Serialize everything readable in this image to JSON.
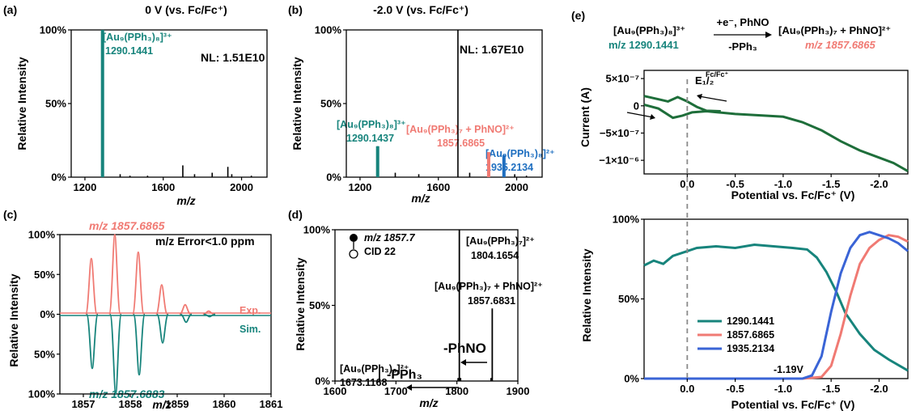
{
  "colors": {
    "teal": "#17847c",
    "salmon": "#f07a73",
    "blue": "#1f6fc0",
    "darkblue": "#3a64d6",
    "black": "#000000",
    "cvgreen": "#1e6e3a",
    "dash": "#8a8a8a"
  },
  "panel_labels": [
    "(a)",
    "(b)",
    "(c)",
    "(d)",
    "(e)"
  ],
  "chart_data": [
    {
      "id": "a",
      "type": "bar",
      "title": "0 V (vs. Fc/Fc⁺)",
      "xlabel": "m/z",
      "ylabel": "Relative Intensity",
      "xlim": [
        1130,
        2130
      ],
      "ylim": [
        0,
        100
      ],
      "xticks": [
        "1200",
        "1600",
        "2000"
      ],
      "yticks": [
        "0%",
        "50%",
        "100%"
      ],
      "nl": "NL: 1.51E10",
      "peak_label": {
        "species": "[Au₉(PPh₃)₈]³⁺",
        "mz": "1290.1441"
      },
      "peaks": [
        {
          "x": 1290,
          "y": 100,
          "c": "teal"
        },
        {
          "x": 1287,
          "y": 100,
          "c": "teal"
        },
        {
          "x": 1293,
          "y": 100,
          "c": "teal"
        },
        {
          "x": 1380,
          "y": 2,
          "c": "black"
        },
        {
          "x": 1430,
          "y": 1,
          "c": "black"
        },
        {
          "x": 1520,
          "y": 1,
          "c": "black"
        },
        {
          "x": 1700,
          "y": 8,
          "c": "black"
        },
        {
          "x": 1760,
          "y": 2,
          "c": "black"
        },
        {
          "x": 1850,
          "y": 3,
          "c": "black"
        },
        {
          "x": 1930,
          "y": 7,
          "c": "black"
        },
        {
          "x": 1950,
          "y": 2,
          "c": "black"
        },
        {
          "x": 2050,
          "y": 1,
          "c": "black"
        }
      ]
    },
    {
      "id": "b",
      "type": "bar",
      "title": "-2.0 V (vs. Fc/Fc⁺)",
      "xlabel": "m/z",
      "ylabel": "Relative Intensity",
      "xlim": [
        1130,
        2130
      ],
      "ylim": [
        0,
        100
      ],
      "xticks": [
        "1200",
        "1600",
        "2000"
      ],
      "yticks": [
        "0%",
        "50%",
        "100%"
      ],
      "nl": "NL: 1.67E10",
      "labels": [
        {
          "species": "[Au₉(PPh₃)₈]³⁺",
          "mz": "1290.1437",
          "c": "teal"
        },
        {
          "species": "[Au₉(PPh₃)₇ + PhNO]²⁺",
          "mz": "1857.6865",
          "c": "salmon"
        },
        {
          "species": "[Au₉(PPh₃)₈]²⁺",
          "mz": "1935.2134",
          "c": "blue"
        }
      ],
      "peaks": [
        {
          "x": 1290,
          "y": 21,
          "c": "teal"
        },
        {
          "x": 1287,
          "y": 21,
          "c": "teal"
        },
        {
          "x": 1293,
          "y": 21,
          "c": "teal"
        },
        {
          "x": 1380,
          "y": 3,
          "c": "black"
        },
        {
          "x": 1500,
          "y": 2,
          "c": "black"
        },
        {
          "x": 1700,
          "y": 100,
          "c": "black"
        },
        {
          "x": 1760,
          "y": 3,
          "c": "black"
        },
        {
          "x": 1857,
          "y": 17,
          "c": "salmon"
        },
        {
          "x": 1854,
          "y": 17,
          "c": "salmon"
        },
        {
          "x": 1860,
          "y": 17,
          "c": "salmon"
        },
        {
          "x": 1935,
          "y": 15,
          "c": "blue"
        },
        {
          "x": 1932,
          "y": 15,
          "c": "blue"
        },
        {
          "x": 1938,
          "y": 15,
          "c": "blue"
        },
        {
          "x": 1990,
          "y": 2,
          "c": "black"
        },
        {
          "x": 2050,
          "y": 1,
          "c": "black"
        }
      ]
    },
    {
      "id": "c",
      "type": "bar",
      "xlabel": "m/z",
      "ylabel": "Relative Intensity",
      "xlim": [
        1856.5,
        1861
      ],
      "ylim": [
        -100,
        100
      ],
      "xticks": [
        "1857",
        "1858",
        "1859",
        "1860",
        "1861"
      ],
      "yticks": [
        "100%",
        "50%",
        "0%",
        "50%",
        "100%"
      ],
      "top_label": "m/z 1857.6865",
      "bottom_label": "m/z 1857.6883",
      "error_label": "m/z Error<1.0 ppm",
      "series": [
        {
          "name": "Exp.",
          "c": "salmon",
          "peaks": [
            [
              1857.17,
              70
            ],
            [
              1857.67,
              100
            ],
            [
              1858.17,
              78
            ],
            [
              1858.67,
              37
            ],
            [
              1859.17,
              12
            ],
            [
              1859.67,
              4
            ]
          ]
        },
        {
          "name": "Sim.",
          "c": "teal",
          "peaks": [
            [
              1857.19,
              -68
            ],
            [
              1857.69,
              -100
            ],
            [
              1858.19,
              -76
            ],
            [
              1858.69,
              -36
            ],
            [
              1859.19,
              -10
            ],
            [
              1859.69,
              -3
            ]
          ]
        }
      ]
    },
    {
      "id": "d",
      "type": "bar",
      "xlabel": "m/z",
      "ylabel": "Relative Intensity",
      "xlim": [
        1600,
        1900
      ],
      "ylim": [
        0,
        100
      ],
      "xticks": [
        "1600",
        "1700",
        "1800",
        "1900"
      ],
      "yticks": [
        "0%",
        "50%",
        "100%"
      ],
      "legend": {
        "precursor": "m/z 1857.7",
        "cid": "CID 22"
      },
      "labels": [
        {
          "species": "[Au₉(PPh₃)₇]²⁺",
          "mz": "1804.1654"
        },
        {
          "species": "[Au₉(PPh₃)₇ + PhNO]²⁺",
          "mz": "1857.6831"
        },
        {
          "species": "[Au₉(PPh₃)₆]²⁺",
          "mz": "1673.1168"
        }
      ],
      "losses": [
        "-PhNO",
        "-PPh₃"
      ],
      "peaks": [
        [
          1673,
          6
        ],
        [
          1802,
          2
        ],
        [
          1804,
          100
        ],
        [
          1806,
          2
        ],
        [
          1856,
          2
        ],
        [
          1858,
          48
        ]
      ]
    },
    {
      "id": "e-top",
      "type": "line",
      "xlabel": "Potential vs. Fc/Fc⁺ (V)",
      "ylabel": "Current (A)",
      "xlim": [
        0.45,
        -2.3
      ],
      "ylim": [
        -1.25e-06,
        6.5e-07
      ],
      "xticks": [
        "0.0",
        "-0.5",
        "-1.0",
        "-1.5",
        "-2.0"
      ],
      "yticks": [
        "5×10⁻⁷",
        "0",
        "−5×10⁻⁷",
        "−1×10⁻⁶"
      ],
      "scheme": {
        "reactant": "[Au₉(PPh₃)₈]³⁺",
        "reactant_mz": "m/z 1290.1441",
        "reagent_top": "+e⁻, PhNO",
        "reagent_bottom": "-PPh₃",
        "product": "[Au₉(PPh₃)₇ + PhNO]²⁺",
        "product_mz": "m/z 1857.6865"
      },
      "e_half": "E₁/₂",
      "e_half_sup": "Fc/Fc⁺",
      "dashed_x": 0.0,
      "forward": [
        [
          0.45,
          2e-08
        ],
        [
          0.3,
          -5e-08
        ],
        [
          0.15,
          -2.2e-07
        ],
        [
          0.05,
          -1.8e-07
        ],
        [
          -0.05,
          -1.2e-07
        ],
        [
          -0.2,
          -1e-07
        ],
        [
          -0.5,
          -1.5e-07
        ],
        [
          -0.8,
          -1.8e-07
        ],
        [
          -1.0,
          -2e-07
        ],
        [
          -1.2,
          -3e-07
        ],
        [
          -1.4,
          -4.5e-07
        ],
        [
          -1.6,
          -6.5e-07
        ],
        [
          -1.8,
          -8.2e-07
        ],
        [
          -2.0,
          -9.5e-07
        ],
        [
          -2.15,
          -1.05e-06
        ],
        [
          -2.3,
          -1.2e-06
        ]
      ],
      "reverse": [
        [
          0.45,
          1.8e-07
        ],
        [
          0.3,
          1.2e-07
        ],
        [
          0.2,
          8e-08
        ],
        [
          0.1,
          1.6e-07
        ],
        [
          0.0,
          8e-08
        ],
        [
          -0.1,
          -2e-08
        ],
        [
          -0.2,
          -9e-08
        ],
        [
          -0.35,
          -1e-07
        ]
      ]
    },
    {
      "id": "e-bottom",
      "type": "line",
      "xlabel": "Potential vs. Fc/Fc⁺ (V)",
      "ylabel": "Relative Intensity",
      "xlim": [
        0.45,
        -2.3
      ],
      "ylim": [
        0,
        100
      ],
      "xticks": [
        "0.0",
        "-0.5",
        "-1.0",
        "-1.5",
        "-2.0"
      ],
      "yticks": [
        "0%",
        "50%",
        "100%"
      ],
      "annotation": "-1.19V",
      "dashed_x": 0.0,
      "series": [
        {
          "name": "1290.1441",
          "c": "teal",
          "points": [
            [
              0.45,
              71
            ],
            [
              0.35,
              74
            ],
            [
              0.25,
              72
            ],
            [
              0.15,
              77
            ],
            [
              0.05,
              79
            ],
            [
              -0.1,
              82
            ],
            [
              -0.3,
              83
            ],
            [
              -0.5,
              82
            ],
            [
              -0.7,
              84
            ],
            [
              -0.9,
              83
            ],
            [
              -1.1,
              82
            ],
            [
              -1.25,
              81
            ],
            [
              -1.35,
              76
            ],
            [
              -1.45,
              67
            ],
            [
              -1.55,
              55
            ],
            [
              -1.65,
              41
            ],
            [
              -1.8,
              28
            ],
            [
              -1.95,
              18
            ],
            [
              -2.1,
              12
            ],
            [
              -2.3,
              5
            ]
          ]
        },
        {
          "name": "1857.6865",
          "c": "salmon",
          "points": [
            [
              0.45,
              0
            ],
            [
              -1.2,
              0
            ],
            [
              -1.4,
              1
            ],
            [
              -1.5,
              8
            ],
            [
              -1.6,
              28
            ],
            [
              -1.7,
              52
            ],
            [
              -1.8,
              72
            ],
            [
              -1.9,
              82
            ],
            [
              -2.0,
              87
            ],
            [
              -2.1,
              90
            ],
            [
              -2.2,
              89
            ],
            [
              -2.3,
              86
            ]
          ]
        },
        {
          "name": "1935.2134",
          "c": "darkblue",
          "points": [
            [
              0.45,
              0
            ],
            [
              -1.2,
              0
            ],
            [
              -1.3,
              2
            ],
            [
              -1.4,
              14
            ],
            [
              -1.5,
              42
            ],
            [
              -1.6,
              66
            ],
            [
              -1.7,
              82
            ],
            [
              -1.8,
              90
            ],
            [
              -1.9,
              92
            ],
            [
              -2.0,
              90
            ],
            [
              -2.1,
              88
            ],
            [
              -2.2,
              85
            ],
            [
              -2.3,
              80
            ]
          ]
        }
      ]
    }
  ]
}
